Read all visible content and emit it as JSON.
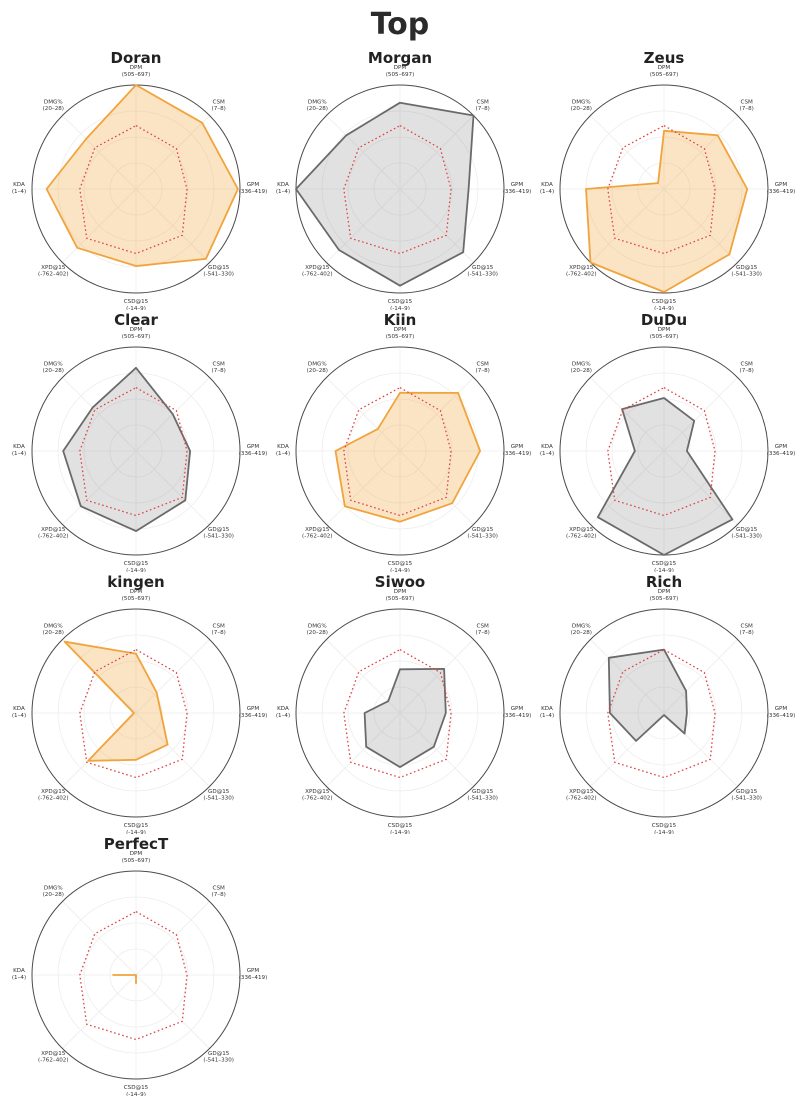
{
  "page_title": "Top",
  "colors": {
    "background": "#ffffff",
    "title_text": "#2b2b2b",
    "chart_title_text": "#222222",
    "axis_label_text": "#333333",
    "outer_circle": "#4a4a4a",
    "grid_line": "#ededed",
    "baseline_red": "#e04545",
    "orange_stroke": "#f1a33c",
    "orange_fill": "rgba(243,166,58,0.30)",
    "gray_stroke": "#6a6a6a",
    "gray_fill": "rgba(128,128,128,0.24)"
  },
  "chart_data": {
    "type": "radar",
    "layout": {
      "columns": 3,
      "rows": 4,
      "grid": "faint concentric rings + 8 spokes",
      "value_scale": [
        0,
        1
      ]
    },
    "axes": [
      {
        "label": "DPM",
        "range": "(505–697)"
      },
      {
        "label": "CSM",
        "range": "(7–8)"
      },
      {
        "label": "GPM",
        "range": "(336–419)"
      },
      {
        "label": "GD@15",
        "range": "(-541–330)"
      },
      {
        "label": "CSD@15",
        "range": "(-14–9)"
      },
      {
        "label": "XPD@15",
        "range": "(-762–402)"
      },
      {
        "label": "KDA",
        "range": "(1–4)"
      },
      {
        "label": "DMG%",
        "range": "(20–28)"
      }
    ],
    "baseline": {
      "name": "average-reference",
      "style": "dotted-red",
      "values": [
        0.61,
        0.55,
        0.49,
        0.63,
        0.62,
        0.67,
        0.54,
        0.56
      ]
    },
    "players": [
      {
        "name": "Doran",
        "color": "orange",
        "values": [
          1.0,
          0.9,
          0.98,
          0.95,
          0.74,
          0.8,
          0.86,
          0.68
        ]
      },
      {
        "name": "Morgan",
        "color": "gray",
        "values": [
          0.83,
          1.0,
          0.66,
          0.86,
          0.93,
          0.83,
          1.0,
          0.73
        ]
      },
      {
        "name": "Zeus",
        "color": "orange",
        "values": [
          0.56,
          0.73,
          0.8,
          0.89,
          0.99,
          1.0,
          0.75,
          0.08
        ]
      },
      {
        "name": "Clear",
        "color": "gray",
        "values": [
          0.8,
          0.5,
          0.52,
          0.67,
          0.77,
          0.75,
          0.7,
          0.59
        ]
      },
      {
        "name": "Kiin",
        "color": "orange",
        "values": [
          0.56,
          0.79,
          0.77,
          0.71,
          0.68,
          0.75,
          0.62,
          0.3
        ]
      },
      {
        "name": "DuDu",
        "color": "gray",
        "values": [
          0.51,
          0.41,
          0.22,
          0.93,
          1.0,
          0.9,
          0.28,
          0.57
        ]
      },
      {
        "name": "kingen",
        "color": "orange",
        "values": [
          0.57,
          0.28,
          0.24,
          0.43,
          0.45,
          0.65,
          0.02,
          0.97
        ]
      },
      {
        "name": "Siwoo",
        "color": "gray",
        "values": [
          0.42,
          0.6,
          0.44,
          0.46,
          0.52,
          0.46,
          0.34,
          0.16
        ]
      },
      {
        "name": "Rich",
        "color": "gray",
        "values": [
          0.61,
          0.3,
          0.22,
          0.28,
          0.02,
          0.38,
          0.52,
          0.75
        ]
      },
      {
        "name": "PerfecT",
        "color": "orange",
        "values": [
          0.0,
          0.0,
          0.0,
          0.0,
          0.08,
          0.0,
          0.22,
          0.0
        ]
      }
    ]
  }
}
